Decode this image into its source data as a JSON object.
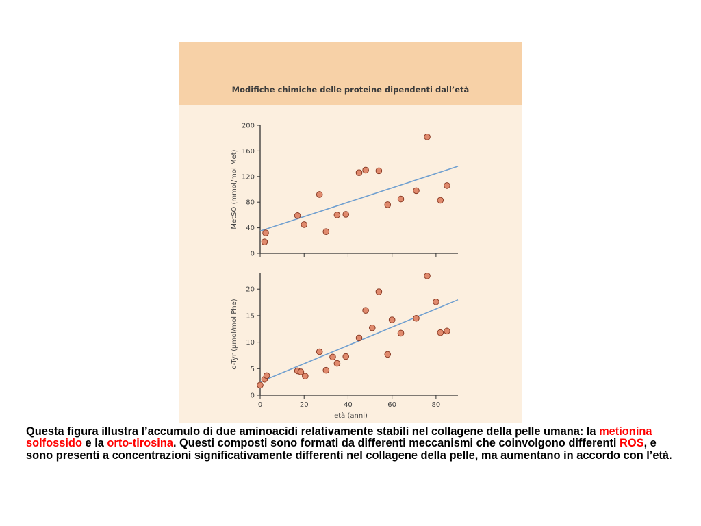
{
  "figure": {
    "title": "Modifiche chimiche delle proteine dipendenti dall’età"
  },
  "chart_data": [
    {
      "type": "scatter",
      "title": "",
      "xlabel": "",
      "ylabel": "MetSO (mmol/mol Met)",
      "xlim": [
        0,
        90
      ],
      "ylim": [
        0,
        200
      ],
      "yticks": [
        0,
        40,
        80,
        120,
        160,
        200
      ],
      "grid": false,
      "points": [
        {
          "x": 2,
          "y": 18
        },
        {
          "x": 2.5,
          "y": 32
        },
        {
          "x": 17,
          "y": 59
        },
        {
          "x": 20,
          "y": 45
        },
        {
          "x": 27,
          "y": 92
        },
        {
          "x": 30,
          "y": 34
        },
        {
          "x": 35,
          "y": 60
        },
        {
          "x": 39,
          "y": 61
        },
        {
          "x": 45,
          "y": 126
        },
        {
          "x": 48,
          "y": 130
        },
        {
          "x": 54,
          "y": 129
        },
        {
          "x": 58,
          "y": 76
        },
        {
          "x": 64,
          "y": 85
        },
        {
          "x": 71,
          "y": 98
        },
        {
          "x": 76,
          "y": 182
        },
        {
          "x": 82,
          "y": 83
        },
        {
          "x": 85,
          "y": 106
        }
      ],
      "trendline": {
        "x": [
          0,
          90
        ],
        "y": [
          35,
          136
        ]
      }
    },
    {
      "type": "scatter",
      "title": "",
      "xlabel": "età (anni)",
      "ylabel": "o-Tyr (µmol/mol Phe)",
      "xlim": [
        0,
        90
      ],
      "ylim": [
        0,
        23
      ],
      "xticks": [
        0,
        20,
        40,
        60,
        80
      ],
      "yticks": [
        0,
        5,
        10,
        15,
        20
      ],
      "grid": false,
      "points": [
        {
          "x": 0,
          "y": 1.9
        },
        {
          "x": 2,
          "y": 3
        },
        {
          "x": 3,
          "y": 3.7
        },
        {
          "x": 17,
          "y": 4.6
        },
        {
          "x": 18.5,
          "y": 4.4
        },
        {
          "x": 20.5,
          "y": 3.6
        },
        {
          "x": 27,
          "y": 8.2
        },
        {
          "x": 30,
          "y": 4.7
        },
        {
          "x": 33,
          "y": 7.2
        },
        {
          "x": 35,
          "y": 6
        },
        {
          "x": 39,
          "y": 7.3
        },
        {
          "x": 45,
          "y": 10.8
        },
        {
          "x": 48,
          "y": 16
        },
        {
          "x": 51,
          "y": 12.7
        },
        {
          "x": 54,
          "y": 19.5
        },
        {
          "x": 58,
          "y": 7.7
        },
        {
          "x": 60,
          "y": 14.2
        },
        {
          "x": 64,
          "y": 11.7
        },
        {
          "x": 71,
          "y": 14.5
        },
        {
          "x": 76,
          "y": 22.5
        },
        {
          "x": 80,
          "y": 17.6
        },
        {
          "x": 82,
          "y": 11.8
        },
        {
          "x": 85,
          "y": 12.1
        }
      ],
      "trendline": {
        "x": [
          0,
          90
        ],
        "y": [
          2.5,
          18
        ]
      }
    }
  ],
  "caption": {
    "part1": "Questa figura illustra l’accumulo di due aminoacidi relativamente stabili nel collagene della pelle umana: la ",
    "term1": "metionina solfossido",
    "part2": " e la ",
    "term2": "orto-tirosina",
    "part3": ". Questi composti sono formati da differenti meccanismi che coinvolgono differenti ",
    "term3": "ROS",
    "part4": ", e sono presenti  a concentrazioni significativamente differenti nel collagene della pelle, ma aumentano in accordo con l’età."
  },
  "colors": {
    "header": "#f7d1a7",
    "panel": "#fcefdf",
    "point_fill": "#e08a6d",
    "point_stroke": "#8a3b25",
    "trendline": "#6f9fd0",
    "highlight": "#ff0000"
  }
}
